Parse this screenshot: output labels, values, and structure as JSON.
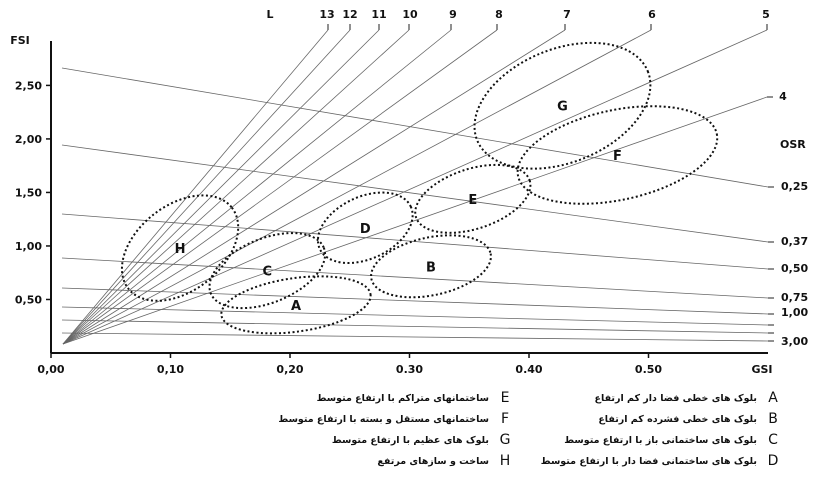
{
  "chart_data": {
    "type": "scatter",
    "title": "",
    "xlabel": "GSI",
    "ylabel": "FSI",
    "xlim": [
      0,
      0.5
    ],
    "ylim": [
      0,
      2.7
    ],
    "x_ticks": [
      {
        "value": 0.0,
        "label": "0,00"
      },
      {
        "value": 0.1,
        "label": "0,10"
      },
      {
        "value": 0.2,
        "label": "0,20"
      },
      {
        "value": 0.3,
        "label": "0.30"
      },
      {
        "value": 0.4,
        "label": "0.40"
      },
      {
        "value": 0.5,
        "label": "0.50"
      }
    ],
    "y_ticks": [
      {
        "value": 0.5,
        "label": "0,50"
      },
      {
        "value": 1.0,
        "label": "1,00"
      },
      {
        "value": 1.5,
        "label": "1,50"
      },
      {
        "value": 2.0,
        "label": "2,00"
      },
      {
        "value": 2.5,
        "label": "2,50"
      }
    ],
    "layer_rays": {
      "label": "L",
      "values": [
        13,
        12,
        11,
        10,
        9,
        8,
        7,
        6,
        5,
        4
      ]
    },
    "osr_lines": {
      "label": "OSR",
      "values": [
        {
          "value": 0.25,
          "label": "0,25"
        },
        {
          "value": 0.37,
          "label": "0,37"
        },
        {
          "value": 0.5,
          "label": "0,50"
        },
        {
          "value": 0.75,
          "label": "0,75"
        },
        {
          "value": 1.0,
          "label": "1,00"
        },
        {
          "value": 1.5,
          "label": ""
        },
        {
          "value": 2.0,
          "label": ""
        },
        {
          "value": 3.0,
          "label": "3,00"
        }
      ]
    },
    "zones": [
      {
        "id": "A",
        "cx": 0.205,
        "cy": 0.45,
        "rx": 0.063,
        "ry": 0.25
      },
      {
        "id": "B",
        "cx": 0.318,
        "cy": 0.81,
        "rx": 0.051,
        "ry": 0.27
      },
      {
        "id": "C",
        "cx": 0.181,
        "cy": 0.77,
        "rx": 0.051,
        "ry": 0.3
      },
      {
        "id": "D",
        "cx": 0.263,
        "cy": 1.17,
        "rx": 0.042,
        "ry": 0.29
      },
      {
        "id": "E",
        "cx": 0.353,
        "cy": 1.44,
        "rx": 0.05,
        "ry": 0.28
      },
      {
        "id": "F",
        "cx": 0.474,
        "cy": 1.85,
        "rx": 0.085,
        "ry": 0.42
      },
      {
        "id": "G",
        "cx": 0.428,
        "cy": 2.31,
        "rx": 0.077,
        "ry": 0.53
      },
      {
        "id": "H",
        "cx": 0.108,
        "cy": 0.98,
        "rx": 0.055,
        "ry": 0.4
      }
    ]
  },
  "legend": [
    {
      "letter": "A",
      "text": "بلوک های خطی فضا دار کم ارتفاع"
    },
    {
      "letter": "B",
      "text": "بلوک های خطی فشرده کم ارتفاع"
    },
    {
      "letter": "C",
      "text": "بلوک های ساختمانی باز با ارتفاع متوسط"
    },
    {
      "letter": "D",
      "text": "بلوک های ساختمانی فضا دار با ارتفاع متوسط"
    },
    {
      "letter": "E",
      "text": "ساختمانهای متراکم با ارتفاع متوسط"
    },
    {
      "letter": "F",
      "text": "ساختمانهای مستقل و بسته با ارتفاع متوسط"
    },
    {
      "letter": "G",
      "text": "بلوک های عظیم با ارتفاع متوسط"
    },
    {
      "letter": "H",
      "text": "ساخت و سازهای مرتفع"
    }
  ]
}
